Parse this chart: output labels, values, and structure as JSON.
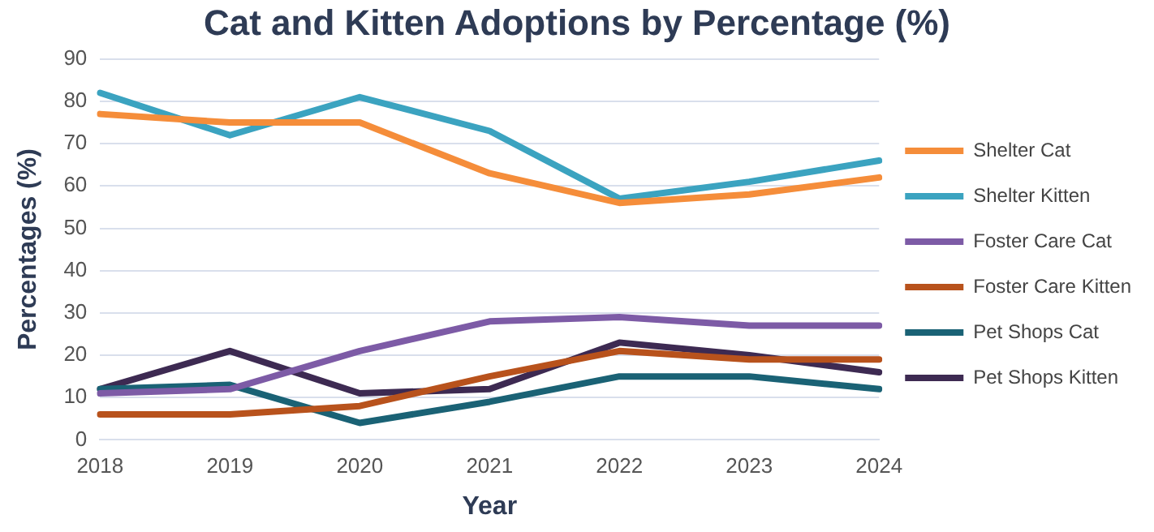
{
  "chart_data": {
    "type": "line",
    "title": "Cat and Kitten Adoptions by Percentage (%)",
    "xlabel": "Year",
    "ylabel": "Percentages (%)",
    "categories": [
      "2018",
      "2019",
      "2020",
      "2021",
      "2022",
      "2023",
      "2024"
    ],
    "series": [
      {
        "name": "Shelter Cat",
        "color": "#f58d3a",
        "values": [
          77,
          75,
          75,
          63,
          56,
          58,
          62
        ]
      },
      {
        "name": "Shelter Kitten",
        "color": "#3ba3c0",
        "values": [
          82,
          72,
          81,
          73,
          57,
          61,
          66
        ]
      },
      {
        "name": "Foster Care Cat",
        "color": "#7d5ba6",
        "values": [
          11,
          12,
          21,
          28,
          29,
          27,
          27
        ]
      },
      {
        "name": "Foster Care Kitten",
        "color": "#b8521c",
        "values": [
          6,
          6,
          8,
          15,
          21,
          19,
          19
        ]
      },
      {
        "name": "Pet Shops Cat",
        "color": "#1a6275",
        "values": [
          12,
          13,
          4,
          9,
          15,
          15,
          12
        ]
      },
      {
        "name": "Pet Shops Kitten",
        "color": "#3d2a52",
        "values": [
          12,
          21,
          11,
          12,
          23,
          20,
          16
        ]
      }
    ],
    "ylim": [
      0,
      90
    ],
    "yticks": [
      0,
      10,
      20,
      30,
      40,
      50,
      60,
      70,
      80,
      90
    ],
    "grid": "y",
    "legend": "right",
    "marker": "none",
    "line_style": "solid"
  }
}
